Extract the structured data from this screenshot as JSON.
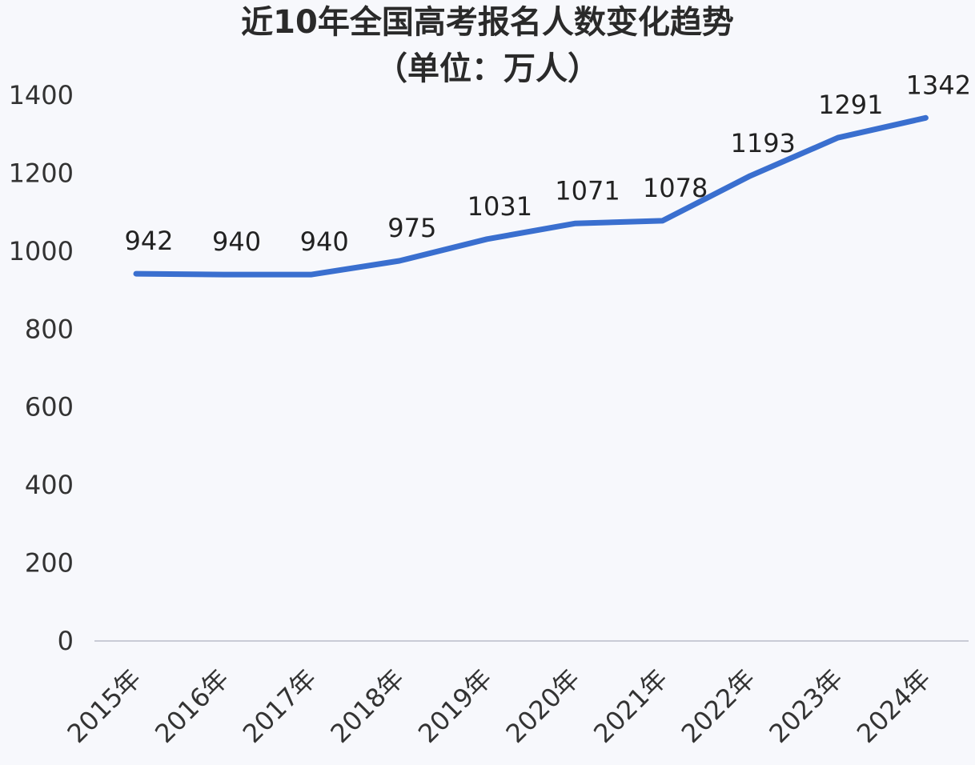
{
  "title": "近10年全国高考报名人数变化趋势",
  "subtitle": "（单位：万人）",
  "colors": {
    "line": "#3a6fcf",
    "axis": "#c9cbd6",
    "background": "#f7f8fc"
  },
  "chart_data": {
    "type": "line",
    "title": "近10年全国高考报名人数变化趋势",
    "subtitle": "（单位：万人）",
    "categories": [
      "2015年",
      "2016年",
      "2017年",
      "2018年",
      "2019年",
      "2020年",
      "2021年",
      "2022年",
      "2023年",
      "2024年"
    ],
    "series": [
      {
        "values": [
          942,
          940,
          940,
          975,
          1031,
          1071,
          1078,
          1193,
          1291,
          1342
        ]
      }
    ],
    "data_labels": [
      "942",
      "940",
      "940",
      "975",
      "1031",
      "1071",
      "1078",
      "1193",
      "1291",
      "1342"
    ],
    "y_ticks": [
      0,
      200,
      400,
      600,
      800,
      1000,
      1200,
      1400
    ],
    "ylim": [
      0,
      1400
    ],
    "xlabel": "",
    "ylabel": "",
    "grid": false,
    "legend": "none"
  }
}
